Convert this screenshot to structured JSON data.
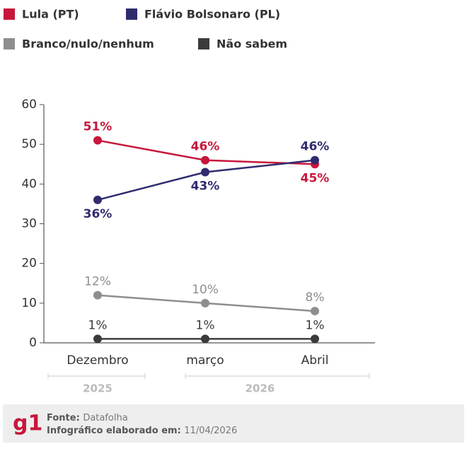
{
  "chart_data": {
    "type": "line",
    "categories": [
      "Dezembro",
      "março",
      "Abril"
    ],
    "x_groups": [
      {
        "label": "2025"
      },
      {
        "label": "2026"
      }
    ],
    "series": [
      {
        "name": "Lula  (PT)",
        "color": "#c8173c",
        "values": [
          51,
          46,
          45
        ],
        "value_labels": [
          "51%",
          "46%",
          "45%"
        ]
      },
      {
        "name": "Flávio Bolsonaro (PL)",
        "color": "#2f2c6e",
        "values": [
          36,
          43,
          46
        ],
        "value_labels": [
          "36%",
          "43%",
          "46%"
        ]
      },
      {
        "name": "Branco/nulo/nenhum",
        "color": "#8e8e8e",
        "values": [
          12,
          10,
          8
        ],
        "value_labels": [
          "12%",
          "10%",
          "8%"
        ]
      },
      {
        "name": "Não sabem",
        "color": "#3b3b3b",
        "values": [
          1,
          1,
          1
        ],
        "value_labels": [
          "1%",
          "1%",
          "1%"
        ]
      }
    ],
    "ylim": [
      0,
      60
    ],
    "yticks": [
      0,
      10,
      20,
      30,
      40,
      50,
      60
    ]
  },
  "footer": {
    "logo": "g1",
    "source_label": "Fonte:",
    "source": "Datafolha",
    "made_label": "Infográfico elaborado em:",
    "made_date": "11/04/2026"
  }
}
